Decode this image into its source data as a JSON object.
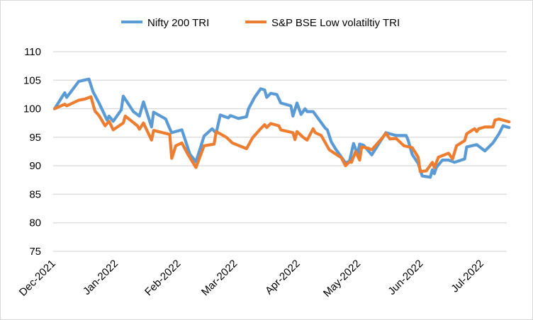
{
  "chart_data": {
    "type": "line",
    "title": "",
    "xlabel": "",
    "ylabel": "",
    "ylim": [
      75,
      110
    ],
    "yticks": [
      "75",
      "80",
      "85",
      "90",
      "95",
      "100",
      "105",
      "110"
    ],
    "xticks": [
      {
        "date": "2021-12-01",
        "label": "Dec-2021"
      },
      {
        "date": "2022-01-01",
        "label": "Jan-2022"
      },
      {
        "date": "2022-02-01",
        "label": "Feb-2022"
      },
      {
        "date": "2022-03-01",
        "label": "Mar-2022"
      },
      {
        "date": "2022-04-01",
        "label": "Apr-2022"
      },
      {
        "date": "2022-05-01",
        "label": "May-2022"
      },
      {
        "date": "2022-06-01",
        "label": "Jun-2022"
      },
      {
        "date": "2022-07-01",
        "label": "Jul-2022"
      }
    ],
    "grid": "horizontal",
    "legend_position": "top",
    "series": [
      {
        "name": "Nifty 200 TRI",
        "color": "#5b9bd5",
        "points": [
          [
            "2021-12-01",
            100
          ],
          [
            "2021-12-06",
            102.8
          ],
          [
            "2021-12-07",
            102
          ],
          [
            "2021-12-13",
            104.8
          ],
          [
            "2021-12-18",
            105.2
          ],
          [
            "2021-12-20",
            103
          ],
          [
            "2021-12-23",
            101
          ],
          [
            "2021-12-27",
            98
          ],
          [
            "2021-12-28",
            98.7
          ],
          [
            "2021-12-30",
            97.8
          ],
          [
            "2022-01-03",
            99.8
          ],
          [
            "2022-01-04",
            102.2
          ],
          [
            "2022-01-09",
            99.5
          ],
          [
            "2022-01-12",
            98.7
          ],
          [
            "2022-01-14",
            101.2
          ],
          [
            "2022-01-18",
            96.8
          ],
          [
            "2022-01-19",
            99.4
          ],
          [
            "2022-01-25",
            98.2
          ],
          [
            "2022-01-27",
            96.5
          ],
          [
            "2022-01-28",
            95.8
          ],
          [
            "2022-02-02",
            96.3
          ],
          [
            "2022-02-06",
            92
          ],
          [
            "2022-02-09",
            90.7
          ],
          [
            "2022-02-13",
            95.2
          ],
          [
            "2022-02-17",
            96.5
          ],
          [
            "2022-02-19",
            95.7
          ],
          [
            "2022-02-21",
            98.9
          ],
          [
            "2022-02-25",
            98.4
          ],
          [
            "2022-02-26",
            98.8
          ],
          [
            "2022-03-02",
            98.3
          ],
          [
            "2022-03-06",
            98.6
          ],
          [
            "2022-03-07",
            100
          ],
          [
            "2022-03-10",
            102
          ],
          [
            "2022-03-13",
            103.5
          ],
          [
            "2022-03-15",
            103.3
          ],
          [
            "2022-03-16",
            102
          ],
          [
            "2022-03-18",
            102.7
          ],
          [
            "2022-03-21",
            102.5
          ],
          [
            "2022-03-23",
            101
          ],
          [
            "2022-03-28",
            100.5
          ],
          [
            "2022-03-29",
            98.7
          ],
          [
            "2022-03-31",
            101
          ],
          [
            "2022-04-02",
            99
          ],
          [
            "2022-04-04",
            100
          ],
          [
            "2022-04-05",
            99.5
          ],
          [
            "2022-04-08",
            99.5
          ],
          [
            "2022-04-14",
            96.6
          ],
          [
            "2022-04-15",
            96.3
          ],
          [
            "2022-04-17",
            94.2
          ],
          [
            "2022-04-19",
            93
          ],
          [
            "2022-04-21",
            92
          ],
          [
            "2022-04-24",
            90.5
          ],
          [
            "2022-04-26",
            90.8
          ],
          [
            "2022-04-28",
            93.9
          ],
          [
            "2022-04-30",
            92
          ],
          [
            "2022-05-01",
            93.8
          ],
          [
            "2022-05-03",
            93.6
          ],
          [
            "2022-05-07",
            91.9
          ],
          [
            "2022-05-14",
            95.8
          ],
          [
            "2022-05-19",
            95.3
          ],
          [
            "2022-05-24",
            95.3
          ],
          [
            "2022-05-25",
            94.5
          ],
          [
            "2022-05-27",
            92
          ],
          [
            "2022-05-30",
            90.4
          ],
          [
            "2022-06-01",
            88.2
          ],
          [
            "2022-06-05",
            88
          ],
          [
            "2022-06-06",
            89.3
          ],
          [
            "2022-06-07",
            88.6
          ],
          [
            "2022-06-08",
            89.7
          ],
          [
            "2022-06-11",
            91
          ],
          [
            "2022-06-14",
            91
          ],
          [
            "2022-06-17",
            90.6
          ],
          [
            "2022-06-22",
            91.2
          ],
          [
            "2022-06-23",
            93.3
          ],
          [
            "2022-06-28",
            93.7
          ],
          [
            "2022-07-02",
            92.6
          ],
          [
            "2022-07-06",
            94
          ],
          [
            "2022-07-09",
            95.6
          ],
          [
            "2022-07-11",
            97
          ],
          [
            "2022-07-14",
            96.7
          ]
        ]
      },
      {
        "name": "S&P BSE Low volatiltiy TRI",
        "color": "#ed7d31",
        "points": [
          [
            "2021-12-01",
            100
          ],
          [
            "2021-12-06",
            100.8
          ],
          [
            "2021-12-07",
            100.5
          ],
          [
            "2021-12-13",
            101.5
          ],
          [
            "2021-12-16",
            101.7
          ],
          [
            "2021-12-19",
            102.1
          ],
          [
            "2021-12-21",
            99.6
          ],
          [
            "2021-12-23",
            98.8
          ],
          [
            "2021-12-26",
            97
          ],
          [
            "2021-12-28",
            97.8
          ],
          [
            "2021-12-30",
            96.3
          ],
          [
            "2022-01-04",
            97.5
          ],
          [
            "2022-01-05",
            98.7
          ],
          [
            "2022-01-11",
            97
          ],
          [
            "2022-01-12",
            96.4
          ],
          [
            "2022-01-14",
            97.5
          ],
          [
            "2022-01-18",
            94.5
          ],
          [
            "2022-01-19",
            96.2
          ],
          [
            "2022-01-27",
            95.5
          ],
          [
            "2022-01-28",
            91.3
          ],
          [
            "2022-01-30",
            93.5
          ],
          [
            "2022-02-02",
            94
          ],
          [
            "2022-02-05",
            92
          ],
          [
            "2022-02-09",
            89.7
          ],
          [
            "2022-02-13",
            93.5
          ],
          [
            "2022-02-18",
            93.8
          ],
          [
            "2022-02-19",
            96
          ],
          [
            "2022-02-24",
            95
          ],
          [
            "2022-02-27",
            94
          ],
          [
            "2022-03-06",
            93
          ],
          [
            "2022-03-09",
            94.9
          ],
          [
            "2022-03-13",
            96.5
          ],
          [
            "2022-03-15",
            97.2
          ],
          [
            "2022-03-16",
            96.7
          ],
          [
            "2022-03-18",
            97.4
          ],
          [
            "2022-03-22",
            97
          ],
          [
            "2022-03-23",
            96.3
          ],
          [
            "2022-03-29",
            95.8
          ],
          [
            "2022-03-30",
            94.6
          ],
          [
            "2022-03-31",
            96
          ],
          [
            "2022-04-03",
            95
          ],
          [
            "2022-04-05",
            94.5
          ],
          [
            "2022-04-08",
            96.5
          ],
          [
            "2022-04-09",
            95.8
          ],
          [
            "2022-04-12",
            95.3
          ],
          [
            "2022-04-16",
            92.8
          ],
          [
            "2022-04-22",
            91.4
          ],
          [
            "2022-04-24",
            90
          ],
          [
            "2022-04-26",
            90.7
          ],
          [
            "2022-04-27",
            90.6
          ],
          [
            "2022-04-29",
            92.5
          ],
          [
            "2022-05-01",
            91
          ],
          [
            "2022-05-02",
            93.3
          ],
          [
            "2022-05-05",
            93.1
          ],
          [
            "2022-05-07",
            92.8
          ],
          [
            "2022-05-12",
            94.8
          ],
          [
            "2022-05-14",
            95.7
          ],
          [
            "2022-05-16",
            94.7
          ],
          [
            "2022-05-19",
            94.8
          ],
          [
            "2022-05-23",
            93.5
          ],
          [
            "2022-05-27",
            93.2
          ],
          [
            "2022-05-30",
            91.5
          ],
          [
            "2022-05-31",
            89
          ],
          [
            "2022-06-03",
            89.1
          ],
          [
            "2022-06-06",
            90.6
          ],
          [
            "2022-06-07",
            89.7
          ],
          [
            "2022-06-09",
            91.5
          ],
          [
            "2022-06-14",
            92.2
          ],
          [
            "2022-06-16",
            91.2
          ],
          [
            "2022-06-18",
            93.5
          ],
          [
            "2022-06-22",
            94.4
          ],
          [
            "2022-06-23",
            95.6
          ],
          [
            "2022-06-26",
            96.3
          ],
          [
            "2022-06-27",
            96.5
          ],
          [
            "2022-06-28",
            96
          ],
          [
            "2022-06-29",
            96.5
          ],
          [
            "2022-07-02",
            96.8
          ],
          [
            "2022-07-06",
            96.8
          ],
          [
            "2022-07-07",
            98
          ],
          [
            "2022-07-09",
            98.2
          ],
          [
            "2022-07-14",
            97.7
          ]
        ]
      }
    ]
  }
}
